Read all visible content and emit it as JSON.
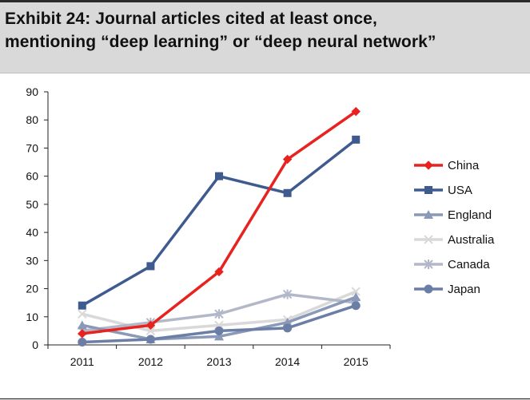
{
  "header": {
    "title_line1": "Exhibit 24: Journal articles cited at least once,",
    "title_line2": "mentioning “deep learning” or “deep neural network”"
  },
  "chart_data": {
    "type": "line",
    "title": "Exhibit 24: Journal articles cited at least once, mentioning “deep learning” or “deep neural network”",
    "xlabel": "",
    "ylabel": "",
    "categories": [
      "2011",
      "2012",
      "2013",
      "2014",
      "2015"
    ],
    "ylim": [
      0,
      90
    ],
    "yticks": [
      0,
      10,
      20,
      30,
      40,
      50,
      60,
      70,
      80,
      90
    ],
    "grid": false,
    "legend_position": "right",
    "series": [
      {
        "name": "China",
        "values": [
          4,
          7,
          26,
          66,
          83
        ],
        "color": "#e8231f",
        "marker": "diamond"
      },
      {
        "name": "USA",
        "values": [
          14,
          28,
          60,
          54,
          73
        ],
        "color": "#3f5a8f",
        "marker": "square"
      },
      {
        "name": "England",
        "values": [
          7,
          2,
          3,
          8,
          17
        ],
        "color": "#8a99b8",
        "marker": "triangle"
      },
      {
        "name": "Australia",
        "values": [
          11,
          5,
          7,
          9,
          19
        ],
        "color": "#d9d9d9",
        "marker": "x"
      },
      {
        "name": "Canada",
        "values": [
          5,
          8,
          11,
          18,
          15
        ],
        "color": "#b3b8c9",
        "marker": "star"
      },
      {
        "name": "Japan",
        "values": [
          1,
          2,
          5,
          6,
          14
        ],
        "color": "#6b7ea6",
        "marker": "circle"
      }
    ]
  }
}
